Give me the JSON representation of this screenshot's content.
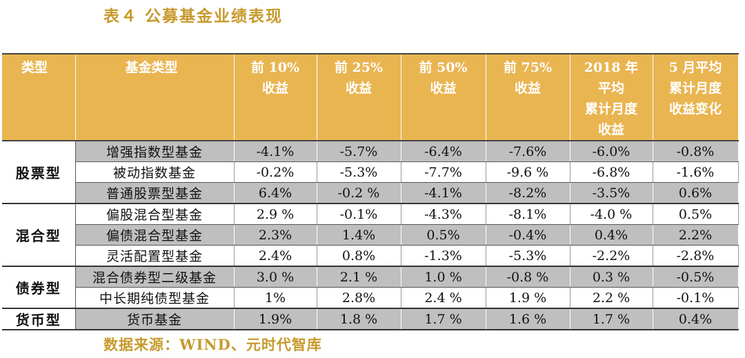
{
  "title": "表４ 公募基金业绩表现",
  "source": "数据来源：WIND、元时代智库",
  "headers": [
    [
      "类型"
    ],
    [
      "基金类型"
    ],
    [
      "前 10%",
      "收益"
    ],
    [
      "前 25%",
      "收益"
    ],
    [
      "前 50%",
      "收益"
    ],
    [
      "前 75%",
      "收益"
    ],
    [
      "2018 年",
      "平均",
      "累计月度",
      "收益"
    ],
    [
      "5 月平均",
      "累计月度",
      "收益变化"
    ]
  ],
  "groups": [
    {
      "category": "股票型",
      "rows": [
        {
          "name": "增强指数型基金",
          "values": [
            "-4.1%",
            "-5.7%",
            "-6.4%",
            "-7.6%",
            "-6.0%",
            "-0.8%"
          ],
          "shaded": true
        },
        {
          "name": "被动指数基金",
          "values": [
            "-0.2%",
            "-5.3%",
            "-7.7%",
            "-9.6 %",
            "-6.8%",
            "-1.6%"
          ],
          "shaded": false
        },
        {
          "name": "普通股票型基金",
          "values": [
            "6.4%",
            "-0.2 %",
            "-4.1%",
            "-8.2%",
            "-3.5%",
            "0.6%"
          ],
          "shaded": true
        }
      ]
    },
    {
      "category": "混合型",
      "rows": [
        {
          "name": "偏股混合型基金",
          "values": [
            "2.9 %",
            "-0.1%",
            "-4.3%",
            "-8.1%",
            "-4.0 %",
            "0.5%"
          ],
          "shaded": false
        },
        {
          "name": "偏债混合型基金",
          "values": [
            "2.3%",
            "1.4%",
            "0.5%",
            "-0.4%",
            "0.4%",
            "2.2%"
          ],
          "shaded": true
        },
        {
          "name": "灵活配置型基金",
          "values": [
            "2.4%",
            "0.8%",
            "-1.3%",
            "-5.3%",
            "-2.2%",
            "-2.8%"
          ],
          "shaded": false
        }
      ]
    },
    {
      "category": "债券型",
      "rows": [
        {
          "name": "混合债券型二级基金",
          "values": [
            "3.0 %",
            "2.1 %",
            "1.0 %",
            "-0.8 %",
            "0.3 %",
            "-0.5%"
          ],
          "shaded": true
        },
        {
          "name": "中长期纯债型基金",
          "values": [
            "1%",
            "2.8%",
            "2.4 %",
            "1.9 %",
            "2.2 %",
            "-0.1%"
          ],
          "shaded": false
        }
      ]
    },
    {
      "category": "货币型",
      "rows": [
        {
          "name": "货币基金",
          "values": [
            "1.9%",
            "1.8 %",
            "1.7 %",
            "1.6 %",
            "1.7 %",
            "0.4%"
          ],
          "shaded": true
        }
      ]
    }
  ],
  "colors": {
    "title": "#C79A2C",
    "header_bg": "#E9B551",
    "shade": "#BFBFBF"
  }
}
